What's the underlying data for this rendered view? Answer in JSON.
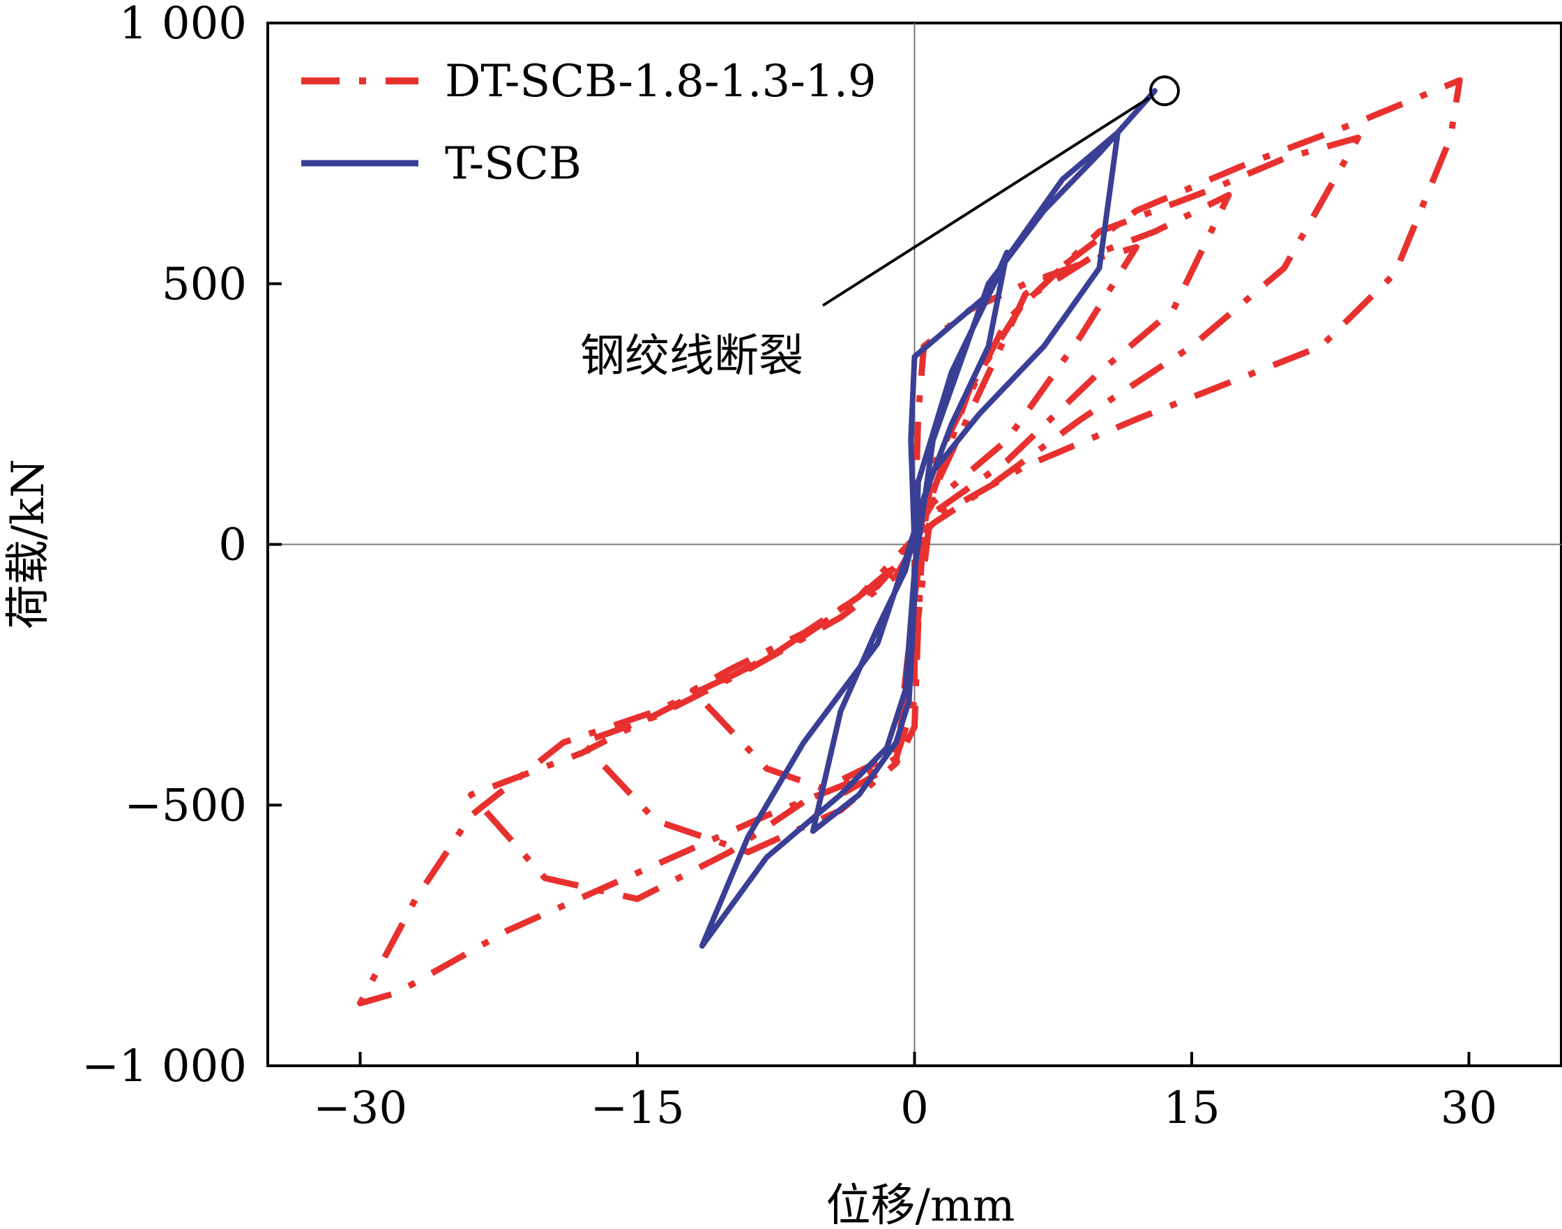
{
  "chart_data": {
    "type": "line",
    "xlabel": "位移/mm",
    "ylabel": "荷载/kN",
    "xlim": [
      -35,
      35
    ],
    "ylim": [
      -1000,
      1000
    ],
    "x_ticks": [
      -30,
      -15,
      0,
      15,
      30
    ],
    "y_ticks": [
      -1000,
      -500,
      0,
      500,
      1000
    ],
    "x_tick_labels": [
      "−30",
      "−15",
      "0",
      "15",
      "30"
    ],
    "y_tick_labels": [
      "−1 000",
      "−500",
      "0",
      "500",
      "1 000"
    ],
    "legend": {
      "placement": "top-left"
    },
    "grid": false,
    "zero_lines": true,
    "series": [
      {
        "name": "DT-SCB-1.8-1.3-1.9",
        "color": "#e8312f",
        "style": "dash-dot",
        "points": [
          [
            0,
            0
          ],
          [
            0.2,
            250
          ],
          [
            0.5,
            380
          ],
          [
            3,
            450
          ],
          [
            6,
            500
          ],
          [
            10,
            550
          ],
          [
            12,
            570
          ],
          [
            9,
            400
          ],
          [
            5,
            200
          ],
          [
            1,
            80
          ],
          [
            -1,
            -40
          ],
          [
            -3,
            -100
          ],
          [
            -6,
            -170
          ],
          [
            -10,
            -240
          ],
          [
            -12,
            -280
          ],
          [
            -8,
            -430
          ],
          [
            -4,
            -480
          ],
          [
            -1,
            -420
          ],
          [
            0,
            -350
          ],
          [
            0.2,
            -150
          ],
          [
            0.5,
            50
          ],
          [
            3,
            300
          ],
          [
            6,
            470
          ],
          [
            10,
            560
          ],
          [
            13,
            600
          ],
          [
            17,
            670
          ],
          [
            14,
            450
          ],
          [
            10,
            330
          ],
          [
            5,
            160
          ],
          [
            1,
            60
          ],
          [
            -1,
            -60
          ],
          [
            -4,
            -140
          ],
          [
            -9,
            -240
          ],
          [
            -14,
            -330
          ],
          [
            -18,
            -380
          ],
          [
            -14,
            -530
          ],
          [
            -9,
            -590
          ],
          [
            -4,
            -510
          ],
          [
            -1,
            -420
          ],
          [
            0,
            -100
          ],
          [
            1,
            150
          ],
          [
            5,
            430
          ],
          [
            10,
            600
          ],
          [
            16,
            680
          ],
          [
            20,
            740
          ],
          [
            24,
            780
          ],
          [
            20,
            530
          ],
          [
            15,
            380
          ],
          [
            9,
            240
          ],
          [
            4,
            110
          ],
          [
            1,
            40
          ],
          [
            -2,
            -80
          ],
          [
            -7,
            -200
          ],
          [
            -12,
            -290
          ],
          [
            -18,
            -400
          ],
          [
            -24,
            -480
          ],
          [
            -20,
            -640
          ],
          [
            -15,
            -680
          ],
          [
            -10,
            -590
          ],
          [
            -5,
            -470
          ],
          [
            -1,
            -400
          ],
          [
            0,
            -200
          ],
          [
            1,
            100
          ],
          [
            6,
            480
          ],
          [
            12,
            640
          ],
          [
            18,
            730
          ],
          [
            24,
            810
          ],
          [
            29.5,
            890
          ],
          [
            29,
            780
          ],
          [
            26,
            520
          ],
          [
            22,
            380
          ],
          [
            17,
            310
          ],
          [
            12,
            240
          ],
          [
            6,
            150
          ],
          [
            1,
            50
          ],
          [
            -3,
            -100
          ],
          [
            -8,
            -220
          ],
          [
            -14,
            -320
          ],
          [
            -19,
            -380
          ],
          [
            -24,
            -520
          ],
          [
            -27,
            -680
          ],
          [
            -30,
            -880
          ],
          [
            -28,
            -860
          ],
          [
            -22,
            -740
          ],
          [
            -15,
            -630
          ],
          [
            -8,
            -520
          ],
          [
            -3,
            -450
          ],
          [
            -1,
            -410
          ],
          [
            0,
            -300
          ],
          [
            0,
            0
          ]
        ]
      },
      {
        "name": "T-SCB",
        "color": "#3a3f96",
        "style": "solid",
        "points": [
          [
            0,
            0
          ],
          [
            -0.2,
            200
          ],
          [
            0,
            360
          ],
          [
            2,
            420
          ],
          [
            4,
            480
          ],
          [
            5,
            560
          ],
          [
            4,
            380
          ],
          [
            2,
            230
          ],
          [
            0.5,
            90
          ],
          [
            -0.5,
            -50
          ],
          [
            -2,
            -160
          ],
          [
            -4,
            -320
          ],
          [
            -5.5,
            -550
          ],
          [
            -3,
            -480
          ],
          [
            -1,
            -380
          ],
          [
            -0.3,
            -300
          ],
          [
            0,
            -100
          ],
          [
            0.2,
            120
          ],
          [
            2,
            330
          ],
          [
            5,
            550
          ],
          [
            8,
            700
          ],
          [
            11,
            790
          ],
          [
            10,
            530
          ],
          [
            7,
            380
          ],
          [
            3.5,
            250
          ],
          [
            1,
            140
          ],
          [
            -0.5,
            -30
          ],
          [
            -2,
            -190
          ],
          [
            -6,
            -380
          ],
          [
            -9,
            -560
          ],
          [
            -11.5,
            -770
          ],
          [
            -8,
            -600
          ],
          [
            -4,
            -480
          ],
          [
            -1.5,
            -390
          ],
          [
            -0.5,
            -280
          ],
          [
            0,
            -50
          ],
          [
            1,
            200
          ],
          [
            4,
            500
          ],
          [
            7,
            640
          ],
          [
            10,
            750
          ],
          [
            13,
            870
          ]
        ]
      }
    ],
    "annotations": [
      {
        "text": "钢绞线断裂",
        "x": 13,
        "y": 870
      }
    ]
  }
}
